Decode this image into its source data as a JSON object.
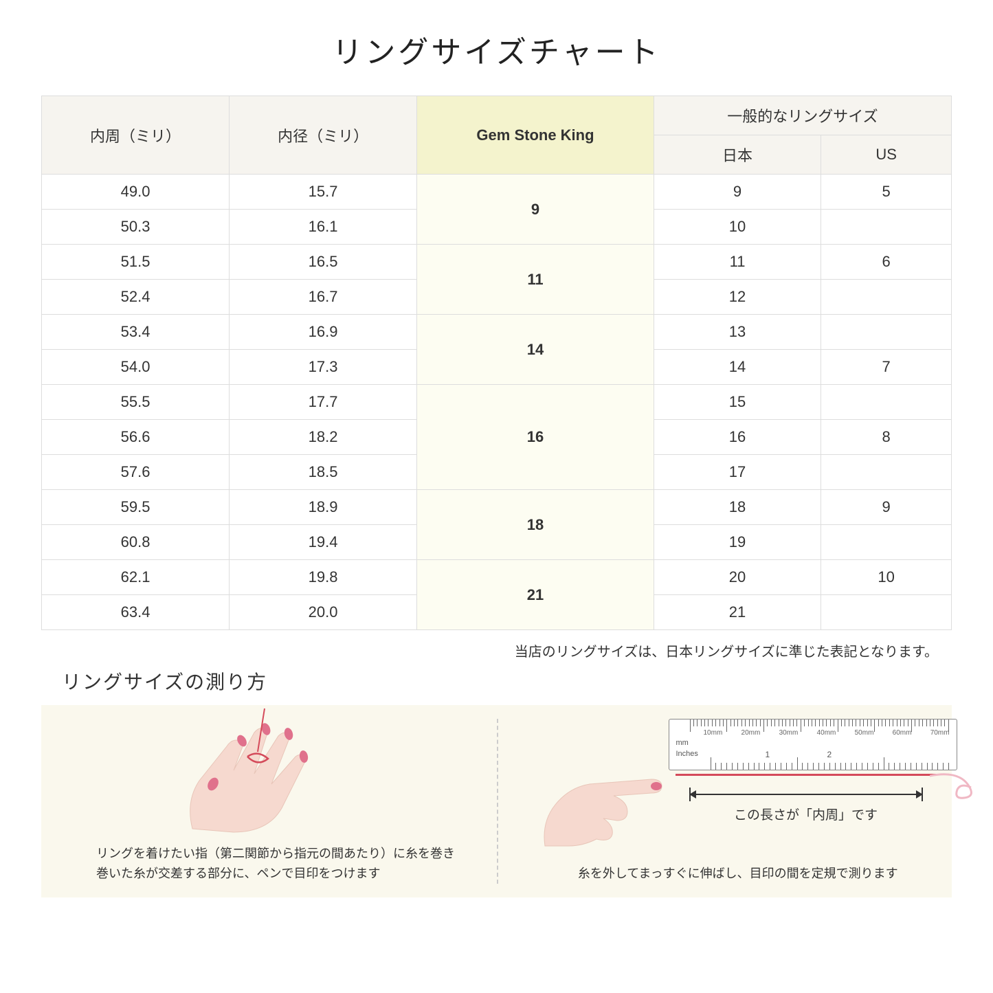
{
  "title": "リングサイズチャート",
  "table": {
    "headers": {
      "circumference": "内周（ミリ）",
      "diameter": "内径（ミリ）",
      "gsk": "Gem Stone King",
      "general": "一般的なリングサイズ",
      "japan": "日本",
      "us": "US"
    },
    "groups": [
      {
        "gsk": "9",
        "rows": [
          {
            "c": "49.0",
            "d": "15.7",
            "jp": "9",
            "us": "5"
          },
          {
            "c": "50.3",
            "d": "16.1",
            "jp": "10",
            "us": ""
          }
        ]
      },
      {
        "gsk": "11",
        "rows": [
          {
            "c": "51.5",
            "d": "16.5",
            "jp": "11",
            "us": "6"
          },
          {
            "c": "52.4",
            "d": "16.7",
            "jp": "12",
            "us": ""
          }
        ]
      },
      {
        "gsk": "14",
        "rows": [
          {
            "c": "53.4",
            "d": "16.9",
            "jp": "13",
            "us": ""
          },
          {
            "c": "54.0",
            "d": "17.3",
            "jp": "14",
            "us": "7"
          }
        ]
      },
      {
        "gsk": "16",
        "rows": [
          {
            "c": "55.5",
            "d": "17.7",
            "jp": "15",
            "us": ""
          },
          {
            "c": "56.6",
            "d": "18.2",
            "jp": "16",
            "us": "8"
          },
          {
            "c": "57.6",
            "d": "18.5",
            "jp": "17",
            "us": ""
          }
        ]
      },
      {
        "gsk": "18",
        "rows": [
          {
            "c": "59.5",
            "d": "18.9",
            "jp": "18",
            "us": "9"
          },
          {
            "c": "60.8",
            "d": "19.4",
            "jp": "19",
            "us": ""
          }
        ]
      },
      {
        "gsk": "21",
        "rows": [
          {
            "c": "62.1",
            "d": "19.8",
            "jp": "20",
            "us": "10"
          },
          {
            "c": "63.4",
            "d": "20.0",
            "jp": "21",
            "us": ""
          }
        ]
      }
    ]
  },
  "note": "当店のリングサイズは、日本リングサイズに準じた表記となります。",
  "howto": {
    "title": "リングサイズの測り方",
    "left_caption": "リングを着けたい指（第二関節から指元の間あたり）に糸を巻き\n巻いた糸が交差する部分に、ペンで目印をつけます",
    "right_caption": "糸を外してまっすぐに伸ばし、目印の間を定規で測ります",
    "arrow_label": "この長さが「内周」です",
    "ruler": {
      "mm_label": "mm",
      "in_label": "Inches",
      "mm_marks": [
        "10mm",
        "20mm",
        "30mm",
        "40mm",
        "50mm",
        "60mm",
        "70mm"
      ],
      "in_marks": [
        "1",
        "2"
      ]
    }
  },
  "colors": {
    "header_bg": "#f6f4ef",
    "highlight_bg": "#f4f3cd",
    "highlight_cell_bg": "#fdfdf2",
    "howto_bg": "#faf8ed",
    "hand_fill": "#f6d9cf",
    "nail_fill": "#e0718c",
    "string": "#d44a5a"
  }
}
